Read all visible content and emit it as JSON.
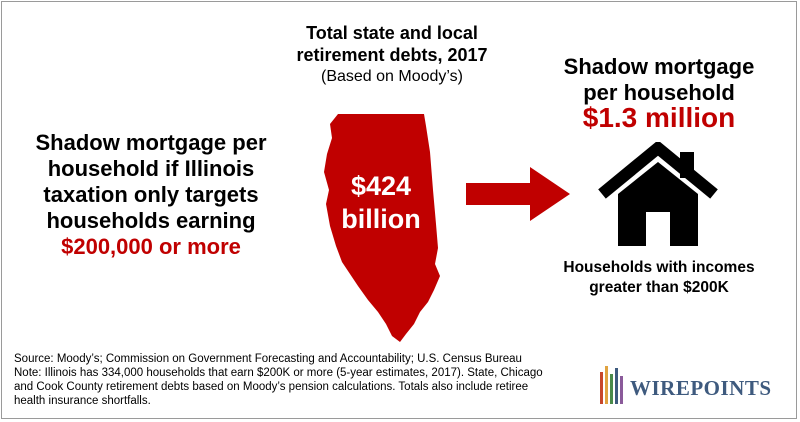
{
  "left_panel": {
    "lines": [
      "Shadow mortgage per",
      "household if Illinois",
      "taxation only targets",
      "households earning"
    ],
    "highlight": "$200,000 or more"
  },
  "center_panel": {
    "title_line1": "Total state and local",
    "title_line2": "retirement debts, 2017",
    "subtitle": "(Based on Moody’s)",
    "amount_line1": "$424",
    "amount_line2": "billion"
  },
  "right_panel": {
    "title_line1": "Shadow mortgage",
    "title_line2": "per household",
    "amount": "$1.3 million",
    "caption_line1": "Households with incomes",
    "caption_line2": "greater than $200K"
  },
  "footer": {
    "source": "Source: Moody’s; Commission on Government Forecasting and Accountability; U.S. Census Bureau",
    "note_line1": "Note: Illinois has 334,000 households that earn $200K or more (5-year estimates, 2017). State, Chicago",
    "note_line2": "and Cook County retirement debts based on Moody’s pension calculations. Totals also include retiree",
    "note_line3": "health insurance shortfalls."
  },
  "logo": {
    "text": "WIREPOINTS"
  },
  "colors": {
    "accent_red": "#c00000",
    "logo_blue": "#3e5a7e",
    "text": "#000000"
  }
}
